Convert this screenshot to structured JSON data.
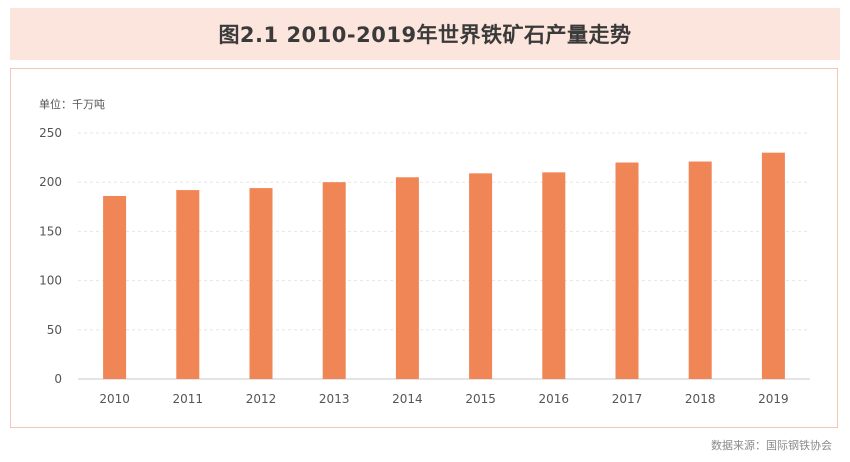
{
  "title": "图2.1 2010-2019年世界铁矿石产量走势",
  "unit": "单位：千万吨",
  "source": "数据来源：国际钢铁协会",
  "colors": {
    "bar": "#f08555",
    "title_bg": "#fbe5dc",
    "frame": "#f3c9b5",
    "grid": "#e6e6e6",
    "axis": "#c8c8c8"
  },
  "chart_data": {
    "type": "bar",
    "title": "图2.1 2010-2019年世界铁矿石产量走势",
    "xlabel": "",
    "ylabel": "单位：千万吨",
    "categories": [
      "2010",
      "2011",
      "2012",
      "2013",
      "2014",
      "2015",
      "2016",
      "2017",
      "2018",
      "2019"
    ],
    "series": [
      {
        "values": [
          186,
          192,
          194,
          200,
          205,
          209,
          210,
          220,
          221,
          230
        ]
      }
    ],
    "ylim": [
      0,
      250
    ],
    "yticks": [
      0,
      50,
      100,
      150,
      200,
      250
    ],
    "grid": true,
    "legend": "none"
  }
}
